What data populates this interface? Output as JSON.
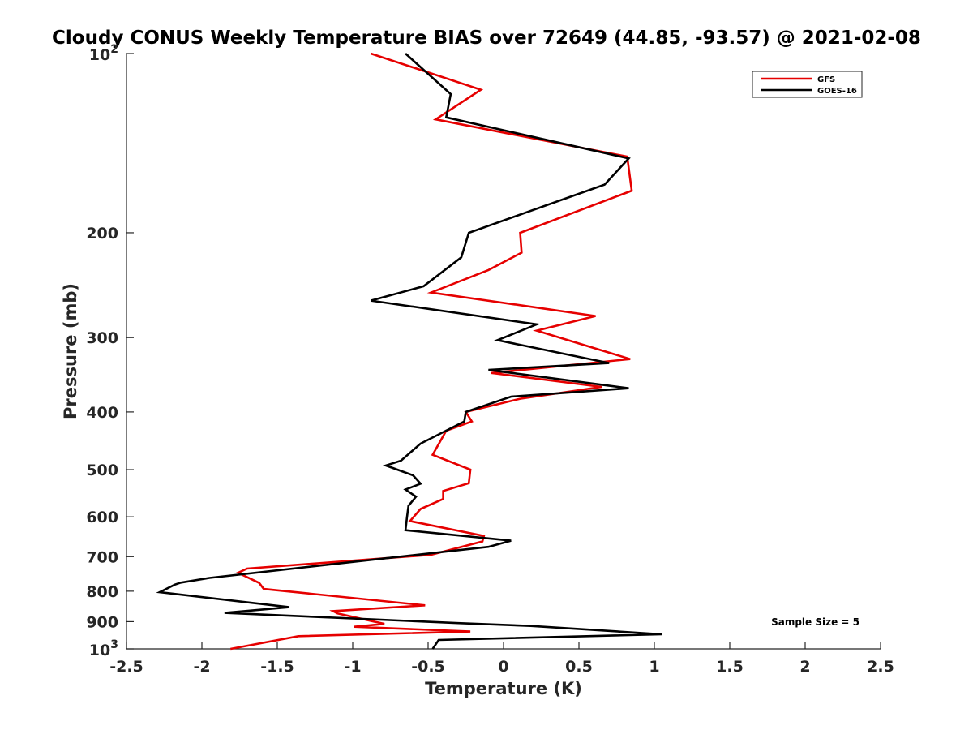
{
  "chart_data": {
    "type": "line",
    "title": "Cloudy CONUS Weekly Temperature BIAS over 72649 (44.85, -93.57) @ 2021-02-08",
    "xlabel": "Temperature (K)",
    "ylabel": "Pressure (mb)",
    "xlim": [
      -2.5,
      2.5
    ],
    "ylim": [
      100,
      1000
    ],
    "y_scale": "log",
    "y_reversed": true,
    "grid": false,
    "legend_position": "top-right",
    "x_ticks": [
      -2.5,
      -2,
      -1.5,
      -1,
      -0.5,
      0,
      0.5,
      1,
      1.5,
      2,
      2.5
    ],
    "x_tick_labels": [
      "-2.5",
      "-2",
      "-1.5",
      "-1",
      "-0.5",
      "0",
      "0.5",
      "1",
      "1.5",
      "2",
      "2.5"
    ],
    "y_ticks": [
      200,
      300,
      400,
      500,
      600,
      700,
      800,
      900
    ],
    "y_tick_labels": [
      "200",
      "300",
      "400",
      "500",
      "600",
      "700",
      "800",
      "900"
    ],
    "y_tick_exponent_labels": [
      {
        "value": 100,
        "base": "10",
        "exp": "2"
      },
      {
        "value": 1000,
        "base": "10",
        "exp": "3"
      }
    ],
    "annotation": "Sample Size = 5",
    "series": [
      {
        "name": "GFS",
        "color": "#e60000",
        "points": [
          [
            -0.88,
            100
          ],
          [
            -0.15,
            115
          ],
          [
            -0.45,
            129
          ],
          [
            0.82,
            149
          ],
          [
            0.85,
            170
          ],
          [
            0.11,
            200
          ],
          [
            0.12,
            216
          ],
          [
            -0.1,
            231
          ],
          [
            -0.48,
            252
          ],
          [
            0.61,
            276
          ],
          [
            0.22,
            292
          ],
          [
            0.84,
            326
          ],
          [
            -0.08,
            344
          ],
          [
            0.65,
            363
          ],
          [
            0.11,
            380
          ],
          [
            -0.25,
            400
          ],
          [
            -0.21,
            415
          ],
          [
            -0.38,
            430
          ],
          [
            -0.47,
            472
          ],
          [
            -0.22,
            500
          ],
          [
            -0.23,
            527
          ],
          [
            -0.4,
            543
          ],
          [
            -0.4,
            560
          ],
          [
            -0.55,
            582
          ],
          [
            -0.62,
            610
          ],
          [
            -0.13,
            646
          ],
          [
            -0.14,
            660
          ],
          [
            -0.48,
            695
          ],
          [
            -1.7,
            733
          ],
          [
            -1.76,
            745
          ],
          [
            -1.62,
            775
          ],
          [
            -1.59,
            793
          ],
          [
            -0.52,
            845
          ],
          [
            -1.13,
            864
          ],
          [
            -1.1,
            872
          ],
          [
            -0.79,
            908
          ],
          [
            -0.99,
            918
          ],
          [
            -0.22,
            935
          ],
          [
            -1.36,
            952
          ],
          [
            -1.81,
            1000
          ]
        ]
      },
      {
        "name": "GOES-16",
        "color": "#000000",
        "points": [
          [
            -0.65,
            100
          ],
          [
            -0.35,
            117
          ],
          [
            -0.38,
            128
          ],
          [
            0.83,
            150
          ],
          [
            0.67,
            166
          ],
          [
            -0.23,
            200
          ],
          [
            -0.28,
            220
          ],
          [
            -0.53,
            246
          ],
          [
            -0.88,
            260
          ],
          [
            0.22,
            285
          ],
          [
            -0.04,
            303
          ],
          [
            0.7,
            331
          ],
          [
            -0.1,
            340
          ],
          [
            0.83,
            365
          ],
          [
            0.05,
            377
          ],
          [
            -0.25,
            400
          ],
          [
            -0.26,
            415
          ],
          [
            -0.55,
            452
          ],
          [
            -0.68,
            483
          ],
          [
            -0.78,
            492
          ],
          [
            -0.6,
            511
          ],
          [
            -0.55,
            528
          ],
          [
            -0.65,
            540
          ],
          [
            -0.58,
            555
          ],
          [
            -0.63,
            575
          ],
          [
            -0.64,
            600
          ],
          [
            -0.65,
            632
          ],
          [
            0.05,
            658
          ],
          [
            -0.1,
            674
          ],
          [
            -1.95,
            760
          ],
          [
            -2.14,
            774
          ],
          [
            -2.18,
            780
          ],
          [
            -2.28,
            803
          ],
          [
            -1.42,
            851
          ],
          [
            -1.85,
            870
          ],
          [
            -0.3,
            905
          ],
          [
            0.18,
            915
          ],
          [
            1.05,
            945
          ],
          [
            -0.43,
            966
          ],
          [
            -0.47,
            1000
          ]
        ]
      }
    ]
  }
}
